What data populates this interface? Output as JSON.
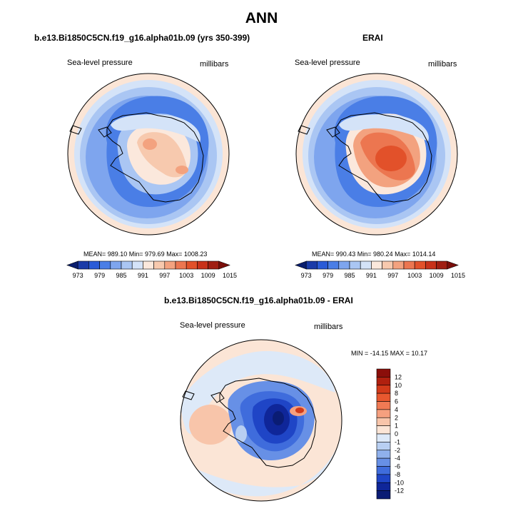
{
  "figure": {
    "title": "ANN"
  },
  "panels": [
    {
      "title": "b.e13.Bi1850C5CN.f19_g16.alpha01b.09 (yrs 350-399)",
      "left_label": "Sea-level pressure",
      "right_label": "millibars",
      "stats": "MEAN= 989.10   Min= 979.69   Max= 1008.23"
    },
    {
      "title": "ERAI",
      "left_label": "Sea-level pressure",
      "right_label": "millibars",
      "stats": "MEAN= 990.43   Min= 980.24   Max= 1014.14"
    },
    {
      "title": "b.e13.Bi1850C5CN.f19_g16.alpha01b.09 - ERAI",
      "left_label": "Sea-level pressure",
      "right_label": "millibars",
      "stats": "MIN = -14.15  MAX =  10.17"
    }
  ],
  "colorbars": {
    "absolute": {
      "labels": [
        "973",
        "979",
        "985",
        "991",
        "997",
        "1003",
        "1009",
        "1015"
      ],
      "colors": [
        "#0a1e6e",
        "#1a3ba8",
        "#2a5bd7",
        "#4a7ee6",
        "#7ea5ee",
        "#aac6f3",
        "#d4e3f8",
        "#fbe8dc",
        "#f7c9ae",
        "#f3a27f",
        "#ec7650",
        "#e2512a",
        "#c8321a",
        "#a01e12",
        "#7a0e0a"
      ]
    },
    "difference": {
      "labels": [
        "12",
        "10",
        "8",
        "6",
        "4",
        "2",
        "1",
        "0",
        "-1",
        "-2",
        "-4",
        "-6",
        "-8",
        "-10",
        "-12"
      ],
      "colors": [
        "#8b0e0a",
        "#b0200f",
        "#d23a1a",
        "#e8582f",
        "#f07a54",
        "#f5a07f",
        "#f8c5aa",
        "#fbe5d6",
        "#dde9f8",
        "#b8cff2",
        "#8fb0ec",
        "#6790e6",
        "#3f6cdc",
        "#1f45c6",
        "#0f2699",
        "#0a1c74"
      ]
    }
  },
  "maps": [
    {
      "name": "model",
      "center_high": "#f7b594",
      "core": "#f08a62"
    },
    {
      "name": "erai",
      "center_high": "#ec7a52",
      "core": "#e2512a"
    },
    {
      "name": "difference",
      "center_low": "#2a4fd0",
      "core": "#0e2494"
    }
  ]
}
